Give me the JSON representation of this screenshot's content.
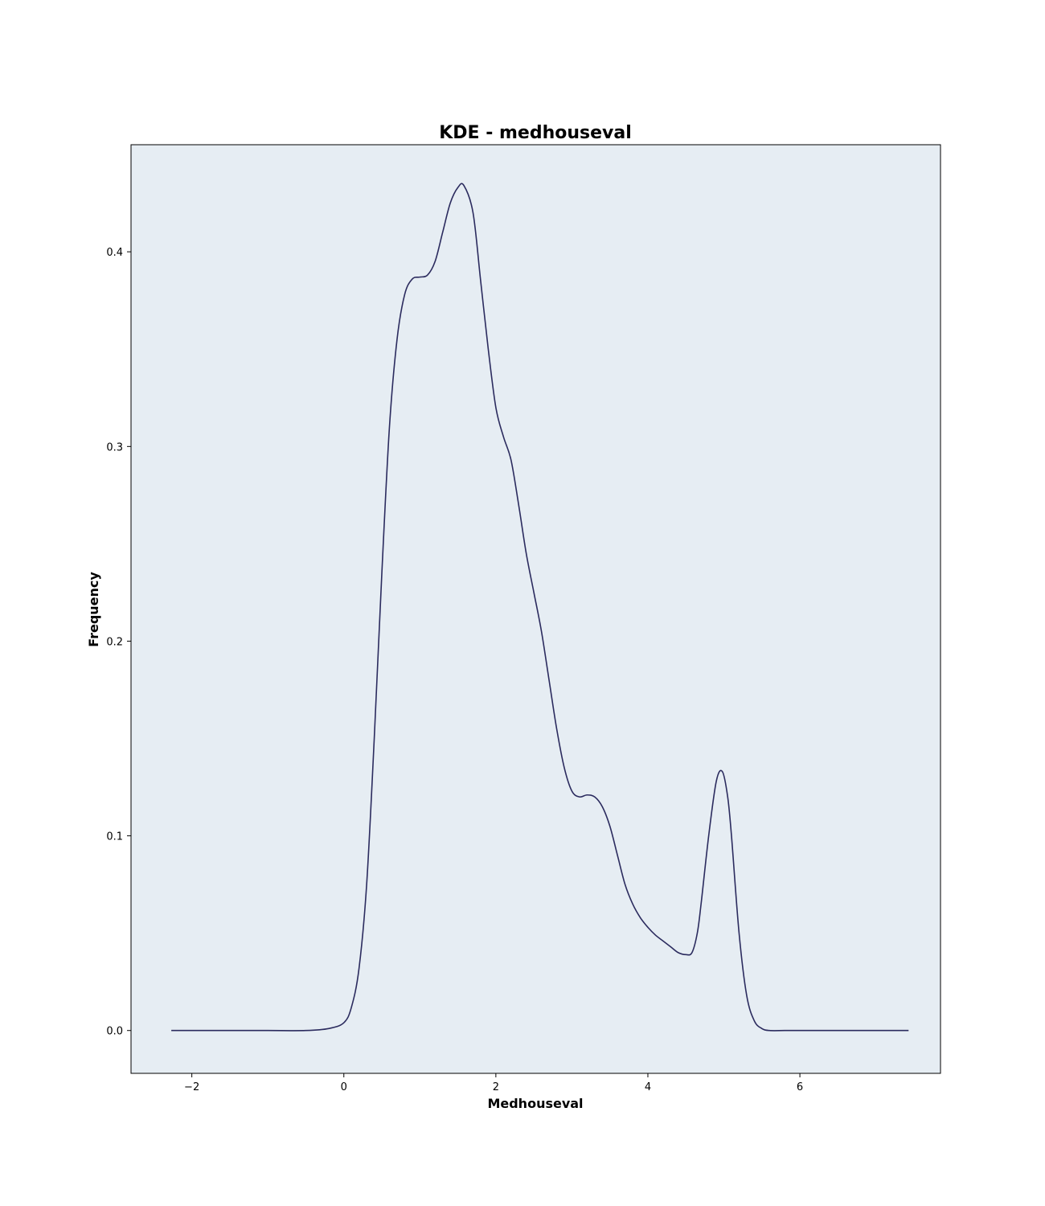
{
  "colors": {
    "plot_background": "#e6edf3",
    "line": "#2b2b5e",
    "frame": "#000000"
  },
  "chart_data": {
    "type": "line",
    "title": "KDE - medhouseval",
    "xlabel": "Medhouseval",
    "ylabel": "Frequency",
    "xlim": [
      -2.8,
      7.85
    ],
    "ylim": [
      -0.022,
      0.455
    ],
    "xticks": [
      -2,
      0,
      2,
      4,
      6
    ],
    "xtick_labels": [
      "−2",
      "0",
      "2",
      "4",
      "6"
    ],
    "yticks": [
      0.0,
      0.1,
      0.2,
      0.3,
      0.4
    ],
    "ytick_labels": [
      "0.0",
      "0.1",
      "0.2",
      "0.3",
      "0.4"
    ],
    "grid": false,
    "legend": "none",
    "series": [
      {
        "x": [
          -2.27,
          -1.5,
          -1.0,
          -0.5,
          -0.2,
          0.0,
          0.1,
          0.2,
          0.3,
          0.4,
          0.5,
          0.6,
          0.7,
          0.8,
          0.9,
          1.0,
          1.1,
          1.2,
          1.3,
          1.4,
          1.5,
          1.58,
          1.7,
          1.8,
          1.9,
          2.0,
          2.1,
          2.2,
          2.3,
          2.4,
          2.5,
          2.6,
          2.7,
          2.8,
          2.9,
          3.0,
          3.1,
          3.2,
          3.3,
          3.4,
          3.5,
          3.6,
          3.7,
          3.8,
          3.9,
          4.0,
          4.1,
          4.2,
          4.3,
          4.4,
          4.5,
          4.58,
          4.65,
          4.7,
          4.8,
          4.9,
          4.98,
          5.05,
          5.1,
          5.2,
          5.3,
          5.4,
          5.5,
          5.6,
          5.8,
          6.0,
          6.5,
          7.0,
          7.43
        ],
        "y": [
          0.0,
          0.0,
          0.0,
          0.0,
          0.001,
          0.004,
          0.012,
          0.032,
          0.075,
          0.15,
          0.235,
          0.31,
          0.355,
          0.378,
          0.386,
          0.387,
          0.388,
          0.395,
          0.41,
          0.425,
          0.433,
          0.434,
          0.42,
          0.385,
          0.35,
          0.32,
          0.305,
          0.293,
          0.27,
          0.245,
          0.225,
          0.205,
          0.18,
          0.155,
          0.135,
          0.123,
          0.12,
          0.121,
          0.12,
          0.115,
          0.105,
          0.09,
          0.075,
          0.065,
          0.058,
          0.053,
          0.049,
          0.046,
          0.043,
          0.04,
          0.039,
          0.04,
          0.05,
          0.065,
          0.1,
          0.128,
          0.133,
          0.12,
          0.1,
          0.05,
          0.018,
          0.005,
          0.001,
          0.0,
          0.0,
          0.0,
          0.0,
          0.0,
          0.0
        ]
      }
    ]
  }
}
